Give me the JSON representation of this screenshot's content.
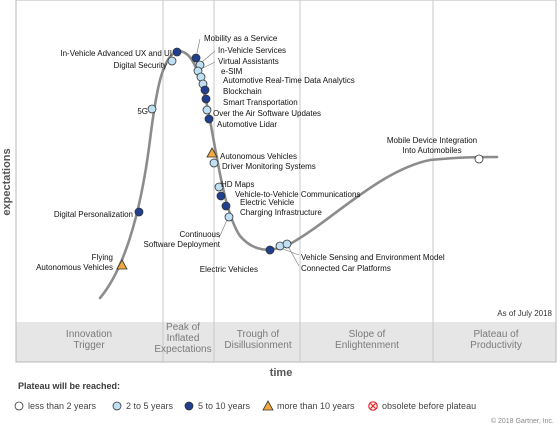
{
  "chart_data": {
    "type": "scatter",
    "ylabel": "expectations",
    "xlabel": "time",
    "as_of": "As of July 2018",
    "copyright": "© 2018 Gartner, Inc.",
    "phases": [
      {
        "id": "innovation-trigger",
        "lines": [
          "Innovation",
          "Trigger"
        ]
      },
      {
        "id": "peak",
        "lines": [
          "Peak of",
          "Inflated",
          "Expectations"
        ]
      },
      {
        "id": "trough",
        "lines": [
          "Trough of",
          "Disillusionment"
        ]
      },
      {
        "id": "slope",
        "lines": [
          "Slope of",
          "Enlightenment"
        ]
      },
      {
        "id": "plateau",
        "lines": [
          "Plateau of",
          "Productivity"
        ]
      }
    ],
    "legend": {
      "title": "Plateau will be reached:",
      "items": [
        {
          "label": "less than 2 years",
          "marker": "open-circle"
        },
        {
          "label": "2 to 5 years",
          "marker": "light-circle"
        },
        {
          "label": "5 to 10 years",
          "marker": "dark-circle"
        },
        {
          "label": "more than 10 years",
          "marker": "triangle"
        },
        {
          "label": "obsolete before plateau",
          "marker": "x-circle"
        }
      ]
    },
    "colors": {
      "curve": "#8c8c8c",
      "open": "#ffffff",
      "light": "#bfe0f3",
      "dark": "#1f3f8f",
      "triangle": "#f2a93b",
      "obsolete": "#e0262b",
      "band": "#e6e6e6",
      "phase_text": "#7a7a7a"
    },
    "technologies": [
      {
        "name": "Flying Autonomous Vehicles",
        "label": [
          "Flying",
          "Autonomous Vehicles"
        ],
        "category": "more than 10 years"
      },
      {
        "name": "Digital Personalization",
        "label": [
          "Digital Personalization"
        ],
        "category": "5 to 10 years"
      },
      {
        "name": "5G",
        "label": [
          "5G"
        ],
        "category": "2 to 5 years"
      },
      {
        "name": "Digital Security",
        "label": [
          "Digital Security"
        ],
        "category": "2 to 5 years"
      },
      {
        "name": "In-Vehicle Advanced UX and UI",
        "label": [
          "In-Vehicle Advanced UX and UI"
        ],
        "category": "5 to 10 years"
      },
      {
        "name": "Mobility as a Service",
        "label": [
          "Mobility as a Service"
        ],
        "category": "5 to 10 years"
      },
      {
        "name": "In-Vehicle Services",
        "label": [
          "In-Vehicle Services"
        ],
        "category": "2 to 5 years"
      },
      {
        "name": "Virtual Assistants",
        "label": [
          "Virtual Assistants"
        ],
        "category": "2 to 5 years"
      },
      {
        "name": "e-SIM",
        "label": [
          "e-SIM"
        ],
        "category": "2 to 5 years"
      },
      {
        "name": "Automotive Real-Time Data Analytics",
        "label": [
          "Automotive Real-Time Data Analytics"
        ],
        "category": "2 to 5 years"
      },
      {
        "name": "Blockchain",
        "label": [
          "Blockchain"
        ],
        "category": "5 to 10 years"
      },
      {
        "name": "Smart Transportation",
        "label": [
          "Smart Transportation"
        ],
        "category": "5 to 10 years"
      },
      {
        "name": "Over the Air Software Updates",
        "label": [
          "Over the Air Software Updates"
        ],
        "category": "2 to 5 years"
      },
      {
        "name": "Automotive Lidar",
        "label": [
          "Automotive Lidar"
        ],
        "category": "5 to 10 years"
      },
      {
        "name": "Autonomous Vehicles",
        "label": [
          "Autonomous Vehicles"
        ],
        "category": "more than 10 years"
      },
      {
        "name": "Driver Monitoring Systems",
        "label": [
          "Driver Monitoring Systems"
        ],
        "category": "2 to 5 years"
      },
      {
        "name": "HD Maps",
        "label": [
          "HD Maps"
        ],
        "category": "2 to 5 years"
      },
      {
        "name": "Vehicle-to-Vehicle Communications",
        "label": [
          "Vehicle-to-Vehicle Communications"
        ],
        "category": "5 to 10 years"
      },
      {
        "name": "Electric Vehicle Charging Infrastructure",
        "label": [
          "Electric Vehicle",
          "Charging Infrastructure"
        ],
        "category": "5 to 10 years"
      },
      {
        "name": "Continuous Software Deployment",
        "label": [
          "Continuous",
          "Software Deployment"
        ],
        "category": "2 to 5 years"
      },
      {
        "name": "Electric Vehicles",
        "label": [
          "Electric Vehicles"
        ],
        "category": "5 to 10 years"
      },
      {
        "name": "Vehicle Sensing and Environment Model",
        "label": [
          "Vehicle Sensing and Environment Model"
        ],
        "category": "2 to 5 years"
      },
      {
        "name": "Connected Car Platforms",
        "label": [
          "Connected Car Platforms"
        ],
        "category": "2 to 5 years"
      },
      {
        "name": "Mobile Device Integration Into Automobiles",
        "label": [
          "Mobile Device Integration",
          "Into Automobiles"
        ],
        "category": "less than 2 years"
      }
    ]
  }
}
